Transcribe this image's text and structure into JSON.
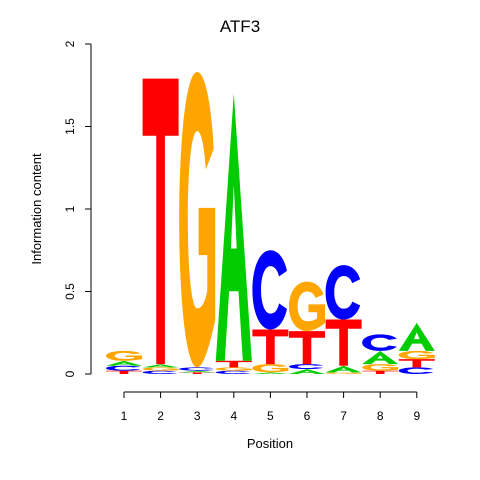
{
  "chart_data": {
    "type": "sequence-logo",
    "title": "ATF3",
    "xlabel": "Position",
    "ylabel": "Information content",
    "ylim": [
      0,
      2
    ],
    "yticks": [
      "0",
      "0.5",
      "1",
      "1.5",
      "2"
    ],
    "xticks": [
      "1",
      "2",
      "3",
      "4",
      "5",
      "6",
      "7",
      "8",
      "9"
    ],
    "colors": {
      "A": "#00cc00",
      "C": "#0000ff",
      "G": "#ffa500",
      "T": "#ff0000"
    },
    "positions": [
      {
        "position": "1",
        "letters": [
          {
            "letter": "T",
            "height": 0.02
          },
          {
            "letter": "C",
            "height": 0.03
          },
          {
            "letter": "A",
            "height": 0.03
          },
          {
            "letter": "G",
            "height": 0.06
          }
        ]
      },
      {
        "position": "2",
        "letters": [
          {
            "letter": "C",
            "height": 0.02
          },
          {
            "letter": "G",
            "height": 0.02
          },
          {
            "letter": "A",
            "height": 0.02
          },
          {
            "letter": "T",
            "height": 1.73
          }
        ]
      },
      {
        "position": "3",
        "letters": [
          {
            "letter": "T",
            "height": 0.01
          },
          {
            "letter": "A",
            "height": 0.01
          },
          {
            "letter": "C",
            "height": 0.02
          },
          {
            "letter": "G",
            "height": 1.79
          }
        ]
      },
      {
        "position": "4",
        "letters": [
          {
            "letter": "C",
            "height": 0.02
          },
          {
            "letter": "G",
            "height": 0.02
          },
          {
            "letter": "T",
            "height": 0.04
          },
          {
            "letter": "A",
            "height": 1.62
          }
        ]
      },
      {
        "position": "5",
        "letters": [
          {
            "letter": "A",
            "height": 0.01
          },
          {
            "letter": "G",
            "height": 0.05
          },
          {
            "letter": "T",
            "height": 0.21
          },
          {
            "letter": "C",
            "height": 0.48
          }
        ]
      },
      {
        "position": "6",
        "letters": [
          {
            "letter": "A",
            "height": 0.03
          },
          {
            "letter": "C",
            "height": 0.03
          },
          {
            "letter": "T",
            "height": 0.2
          },
          {
            "letter": "G",
            "height": 0.3
          }
        ]
      },
      {
        "position": "7",
        "letters": [
          {
            "letter": "G",
            "height": 0.01
          },
          {
            "letter": "A",
            "height": 0.04
          },
          {
            "letter": "T",
            "height": 0.28
          },
          {
            "letter": "C",
            "height": 0.33
          }
        ]
      },
      {
        "position": "8",
        "letters": [
          {
            "letter": "T",
            "height": 0.02
          },
          {
            "letter": "G",
            "height": 0.04
          },
          {
            "letter": "A",
            "height": 0.08
          },
          {
            "letter": "C",
            "height": 0.1
          }
        ]
      },
      {
        "position": "9",
        "letters": [
          {
            "letter": "C",
            "height": 0.04
          },
          {
            "letter": "T",
            "height": 0.05
          },
          {
            "letter": "G",
            "height": 0.05
          },
          {
            "letter": "A",
            "height": 0.17
          }
        ]
      }
    ]
  }
}
